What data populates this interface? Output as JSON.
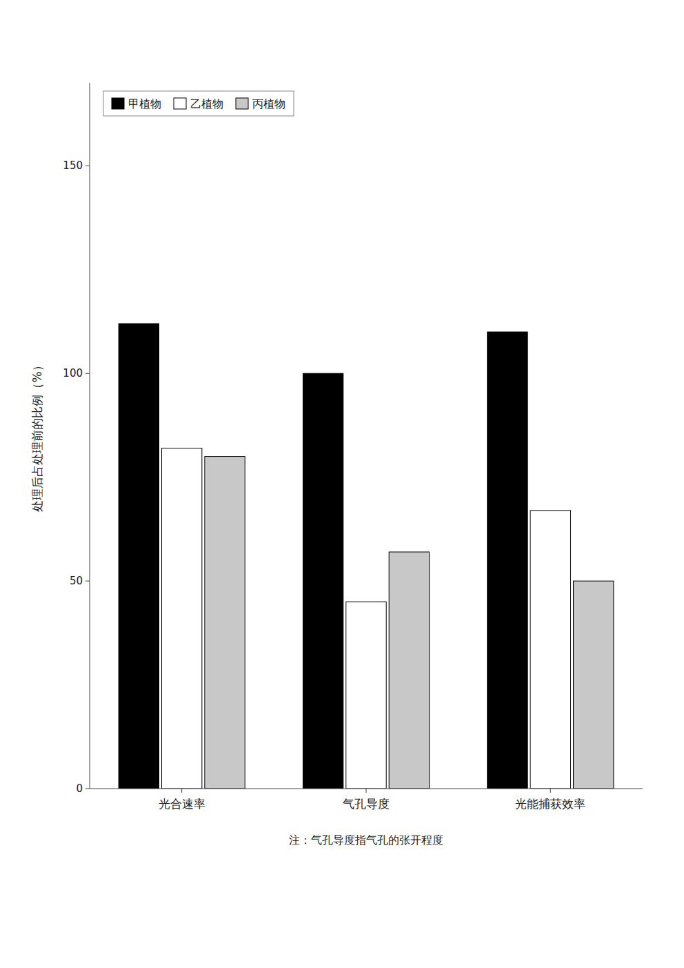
{
  "chart_data": {
    "type": "bar",
    "y_label": "处理后占处理前的比例（%）",
    "categories": [
      "光合速率",
      "气孔导度",
      "光能捕获效率"
    ],
    "series": [
      {
        "name": "甲植物",
        "color": "#000000",
        "values": [
          112,
          100,
          110
        ]
      },
      {
        "name": "乙植物",
        "color": "#ffffff",
        "values": [
          82,
          45,
          67
        ]
      },
      {
        "name": "丙植物",
        "color": "#c8c8c8",
        "values": [
          80,
          57,
          50
        ]
      }
    ],
    "ylim": [
      0,
      170
    ],
    "yticks": [
      0,
      50,
      100,
      150
    ],
    "legend": "upper left",
    "annotations": [
      "注：气孔导度指气孔的张开程度"
    ]
  }
}
